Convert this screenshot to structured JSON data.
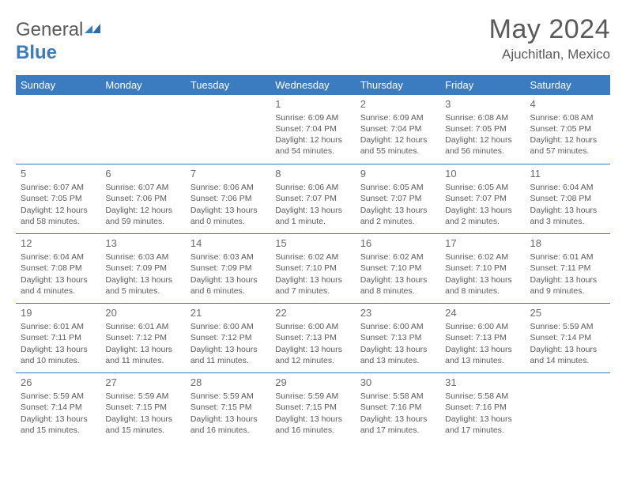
{
  "brand": {
    "part1": "General",
    "part2": "Blue"
  },
  "title": "May 2024",
  "location": "Ajuchitlan, Mexico",
  "colors": {
    "header_bg": "#3b7bbf",
    "header_text": "#ffffff",
    "border": "#3b7bbf",
    "text": "#5a5a5a",
    "bg": "#ffffff"
  },
  "day_headers": [
    "Sunday",
    "Monday",
    "Tuesday",
    "Wednesday",
    "Thursday",
    "Friday",
    "Saturday"
  ],
  "weeks": [
    [
      null,
      null,
      null,
      {
        "n": "1",
        "sr": "Sunrise: 6:09 AM",
        "ss": "Sunset: 7:04 PM",
        "dl": "Daylight: 12 hours and 54 minutes."
      },
      {
        "n": "2",
        "sr": "Sunrise: 6:09 AM",
        "ss": "Sunset: 7:04 PM",
        "dl": "Daylight: 12 hours and 55 minutes."
      },
      {
        "n": "3",
        "sr": "Sunrise: 6:08 AM",
        "ss": "Sunset: 7:05 PM",
        "dl": "Daylight: 12 hours and 56 minutes."
      },
      {
        "n": "4",
        "sr": "Sunrise: 6:08 AM",
        "ss": "Sunset: 7:05 PM",
        "dl": "Daylight: 12 hours and 57 minutes."
      }
    ],
    [
      {
        "n": "5",
        "sr": "Sunrise: 6:07 AM",
        "ss": "Sunset: 7:05 PM",
        "dl": "Daylight: 12 hours and 58 minutes."
      },
      {
        "n": "6",
        "sr": "Sunrise: 6:07 AM",
        "ss": "Sunset: 7:06 PM",
        "dl": "Daylight: 12 hours and 59 minutes."
      },
      {
        "n": "7",
        "sr": "Sunrise: 6:06 AM",
        "ss": "Sunset: 7:06 PM",
        "dl": "Daylight: 13 hours and 0 minutes."
      },
      {
        "n": "8",
        "sr": "Sunrise: 6:06 AM",
        "ss": "Sunset: 7:07 PM",
        "dl": "Daylight: 13 hours and 1 minute."
      },
      {
        "n": "9",
        "sr": "Sunrise: 6:05 AM",
        "ss": "Sunset: 7:07 PM",
        "dl": "Daylight: 13 hours and 2 minutes."
      },
      {
        "n": "10",
        "sr": "Sunrise: 6:05 AM",
        "ss": "Sunset: 7:07 PM",
        "dl": "Daylight: 13 hours and 2 minutes."
      },
      {
        "n": "11",
        "sr": "Sunrise: 6:04 AM",
        "ss": "Sunset: 7:08 PM",
        "dl": "Daylight: 13 hours and 3 minutes."
      }
    ],
    [
      {
        "n": "12",
        "sr": "Sunrise: 6:04 AM",
        "ss": "Sunset: 7:08 PM",
        "dl": "Daylight: 13 hours and 4 minutes."
      },
      {
        "n": "13",
        "sr": "Sunrise: 6:03 AM",
        "ss": "Sunset: 7:09 PM",
        "dl": "Daylight: 13 hours and 5 minutes."
      },
      {
        "n": "14",
        "sr": "Sunrise: 6:03 AM",
        "ss": "Sunset: 7:09 PM",
        "dl": "Daylight: 13 hours and 6 minutes."
      },
      {
        "n": "15",
        "sr": "Sunrise: 6:02 AM",
        "ss": "Sunset: 7:10 PM",
        "dl": "Daylight: 13 hours and 7 minutes."
      },
      {
        "n": "16",
        "sr": "Sunrise: 6:02 AM",
        "ss": "Sunset: 7:10 PM",
        "dl": "Daylight: 13 hours and 8 minutes."
      },
      {
        "n": "17",
        "sr": "Sunrise: 6:02 AM",
        "ss": "Sunset: 7:10 PM",
        "dl": "Daylight: 13 hours and 8 minutes."
      },
      {
        "n": "18",
        "sr": "Sunrise: 6:01 AM",
        "ss": "Sunset: 7:11 PM",
        "dl": "Daylight: 13 hours and 9 minutes."
      }
    ],
    [
      {
        "n": "19",
        "sr": "Sunrise: 6:01 AM",
        "ss": "Sunset: 7:11 PM",
        "dl": "Daylight: 13 hours and 10 minutes."
      },
      {
        "n": "20",
        "sr": "Sunrise: 6:01 AM",
        "ss": "Sunset: 7:12 PM",
        "dl": "Daylight: 13 hours and 11 minutes."
      },
      {
        "n": "21",
        "sr": "Sunrise: 6:00 AM",
        "ss": "Sunset: 7:12 PM",
        "dl": "Daylight: 13 hours and 11 minutes."
      },
      {
        "n": "22",
        "sr": "Sunrise: 6:00 AM",
        "ss": "Sunset: 7:13 PM",
        "dl": "Daylight: 13 hours and 12 minutes."
      },
      {
        "n": "23",
        "sr": "Sunrise: 6:00 AM",
        "ss": "Sunset: 7:13 PM",
        "dl": "Daylight: 13 hours and 13 minutes."
      },
      {
        "n": "24",
        "sr": "Sunrise: 6:00 AM",
        "ss": "Sunset: 7:13 PM",
        "dl": "Daylight: 13 hours and 13 minutes."
      },
      {
        "n": "25",
        "sr": "Sunrise: 5:59 AM",
        "ss": "Sunset: 7:14 PM",
        "dl": "Daylight: 13 hours and 14 minutes."
      }
    ],
    [
      {
        "n": "26",
        "sr": "Sunrise: 5:59 AM",
        "ss": "Sunset: 7:14 PM",
        "dl": "Daylight: 13 hours and 15 minutes."
      },
      {
        "n": "27",
        "sr": "Sunrise: 5:59 AM",
        "ss": "Sunset: 7:15 PM",
        "dl": "Daylight: 13 hours and 15 minutes."
      },
      {
        "n": "28",
        "sr": "Sunrise: 5:59 AM",
        "ss": "Sunset: 7:15 PM",
        "dl": "Daylight: 13 hours and 16 minutes."
      },
      {
        "n": "29",
        "sr": "Sunrise: 5:59 AM",
        "ss": "Sunset: 7:15 PM",
        "dl": "Daylight: 13 hours and 16 minutes."
      },
      {
        "n": "30",
        "sr": "Sunrise: 5:58 AM",
        "ss": "Sunset: 7:16 PM",
        "dl": "Daylight: 13 hours and 17 minutes."
      },
      {
        "n": "31",
        "sr": "Sunrise: 5:58 AM",
        "ss": "Sunset: 7:16 PM",
        "dl": "Daylight: 13 hours and 17 minutes."
      },
      null
    ]
  ]
}
